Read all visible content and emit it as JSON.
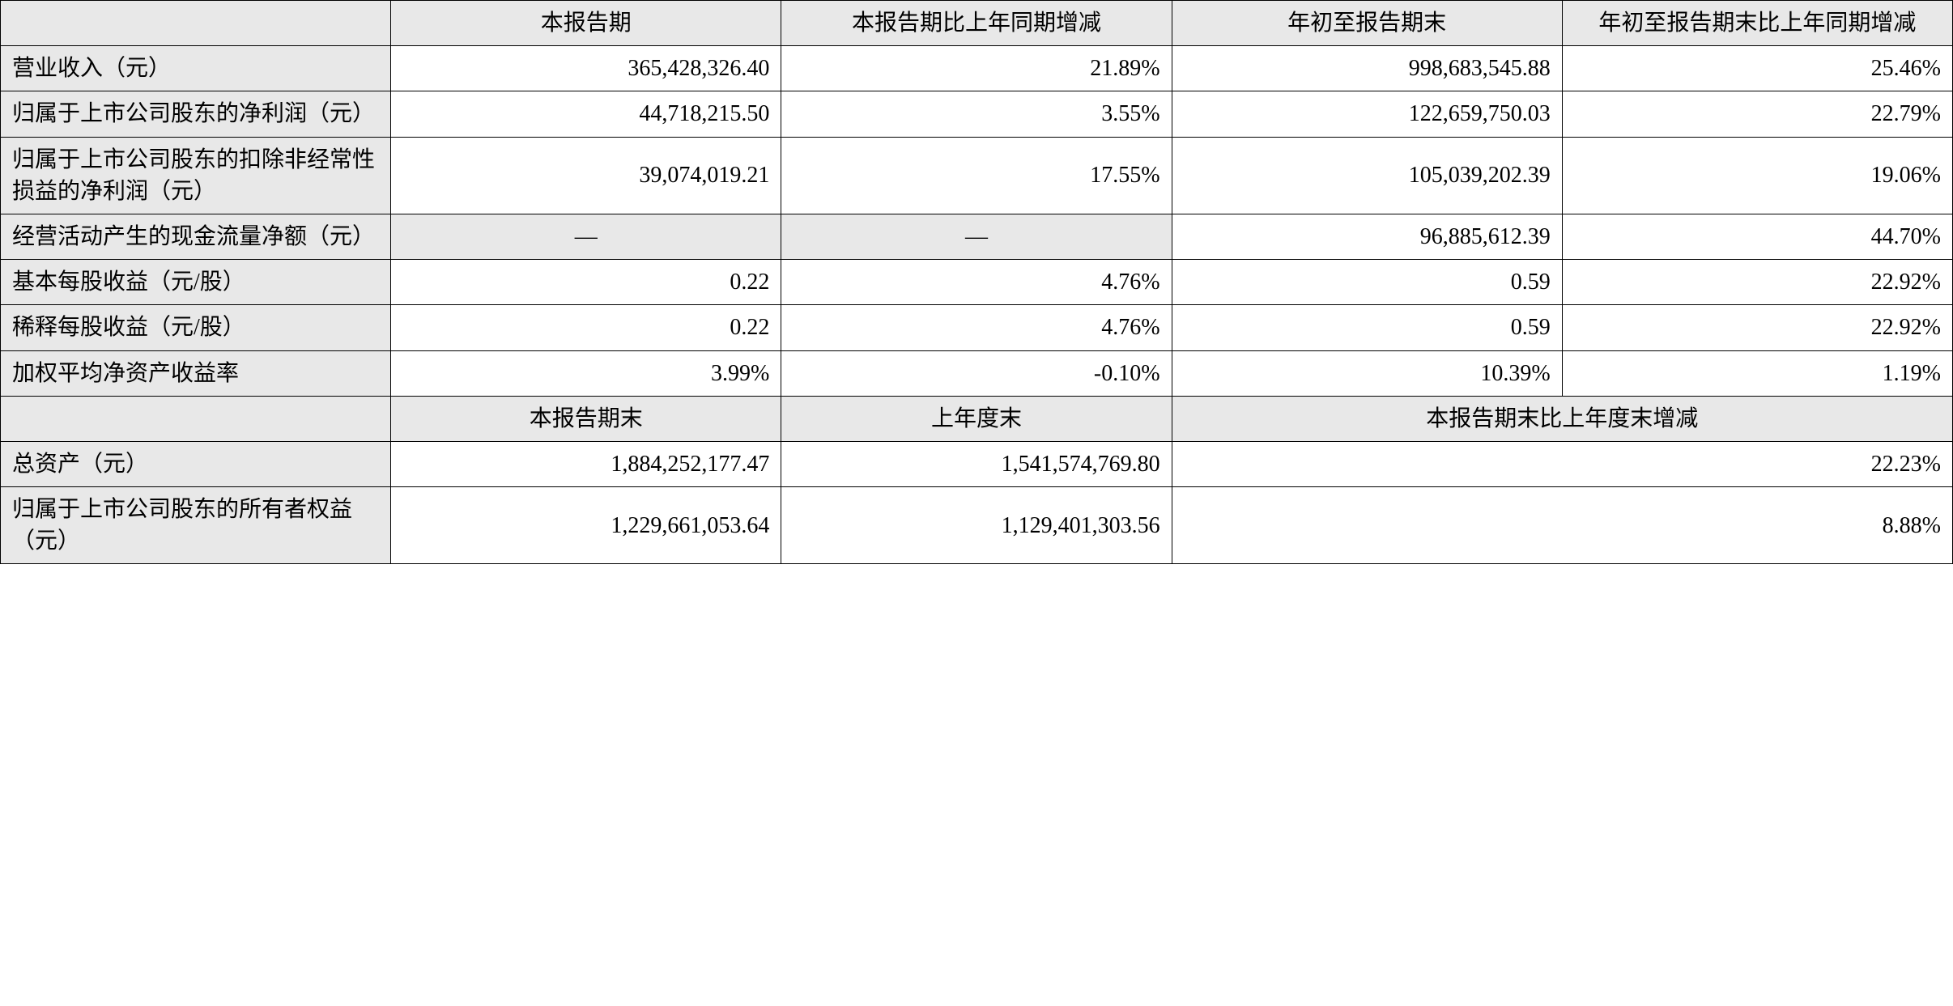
{
  "table": {
    "type": "table",
    "background_color": "#ffffff",
    "shaded_background_color": "#e8e8e8",
    "border_color": "#000000",
    "text_color": "#000000",
    "font_size_pt": 28,
    "columns": [
      {
        "key": "label",
        "width_pct": 20,
        "align": "left"
      },
      {
        "key": "col1",
        "width_pct": 20,
        "align": "right"
      },
      {
        "key": "col2",
        "width_pct": 20,
        "align": "right"
      },
      {
        "key": "col3",
        "width_pct": 20,
        "align": "right"
      },
      {
        "key": "col4",
        "width_pct": 20,
        "align": "right"
      }
    ],
    "header1": {
      "blank": "",
      "col1": "本报告期",
      "col2": "本报告期比上年同期增减",
      "col3": "年初至报告期末",
      "col4": "年初至报告期末比上年同期增减"
    },
    "rows1": [
      {
        "label": "营业收入（元）",
        "col1": "365,428,326.40",
        "col2": "21.89%",
        "col3": "998,683,545.88",
        "col4": "25.46%"
      },
      {
        "label": "归属于上市公司股东的净利润（元）",
        "col1": "44,718,215.50",
        "col2": "3.55%",
        "col3": "122,659,750.03",
        "col4": "22.79%"
      },
      {
        "label": "归属于上市公司股东的扣除非经常性损益的净利润（元）",
        "col1": "39,074,019.21",
        "col2": "17.55%",
        "col3": "105,039,202.39",
        "col4": "19.06%"
      },
      {
        "label": "经营活动产生的现金流量净额（元）",
        "col1": "—",
        "col2": "—",
        "col3": "96,885,612.39",
        "col4": "44.70%",
        "col1_dash": true,
        "col2_dash": true
      },
      {
        "label": "基本每股收益（元/股）",
        "col1": "0.22",
        "col2": "4.76%",
        "col3": "0.59",
        "col4": "22.92%"
      },
      {
        "label": "稀释每股收益（元/股）",
        "col1": "0.22",
        "col2": "4.76%",
        "col3": "0.59",
        "col4": "22.92%"
      },
      {
        "label": "加权平均净资产收益率",
        "col1": "3.99%",
        "col2": "-0.10%",
        "col3": "10.39%",
        "col4": "1.19%"
      }
    ],
    "header2": {
      "blank": "",
      "col1": "本报告期末",
      "col2": "上年度末",
      "col34": "本报告期末比上年度末增减"
    },
    "rows2": [
      {
        "label": "总资产（元）",
        "col1": "1,884,252,177.47",
        "col2": "1,541,574,769.80",
        "col34": "22.23%"
      },
      {
        "label": "归属于上市公司股东的所有者权益（元）",
        "col1": "1,229,661,053.64",
        "col2": "1,129,401,303.56",
        "col34": "8.88%"
      }
    ]
  }
}
